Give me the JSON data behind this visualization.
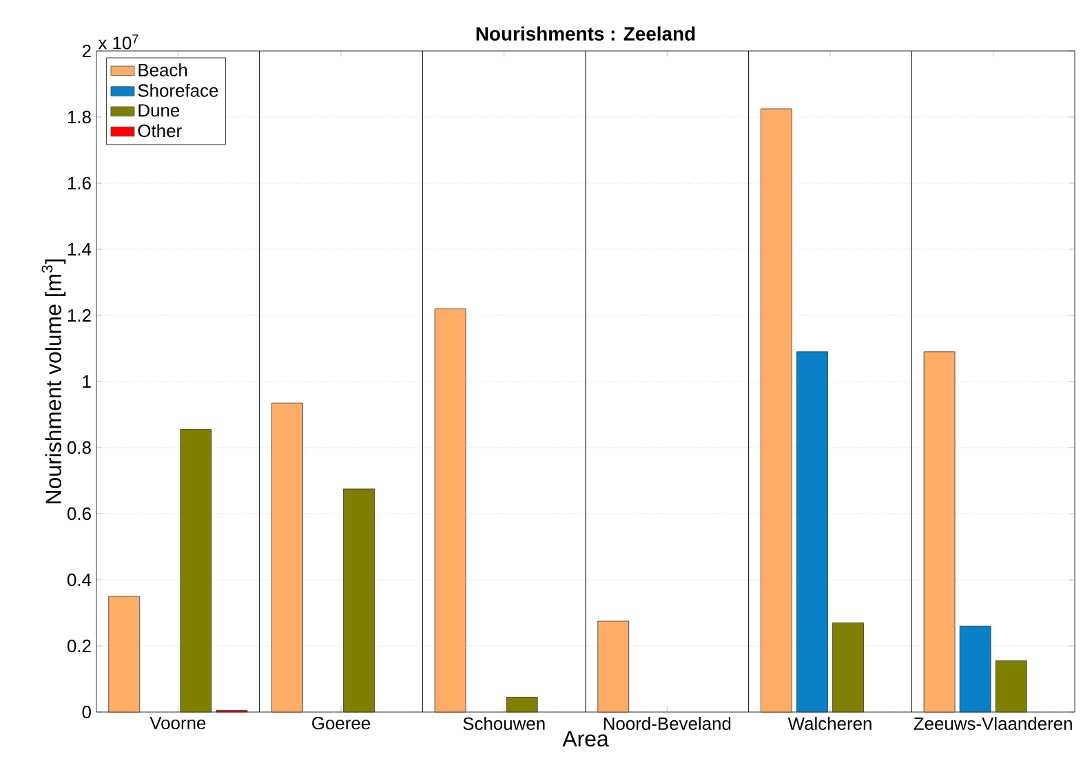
{
  "chart_data": {
    "type": "bar",
    "title": "Nourishments : Zeeland",
    "xlabel": "Area",
    "ylabel": "Nourishment volume [m$^{3}$]",
    "annotations": [
      "x 10$^{7}$"
    ],
    "categories": [
      "Voorne",
      "Goeree",
      "Schouwen",
      "Noord-Beveland",
      "Walcheren",
      "Zeeuws-Vlaanderen"
    ],
    "series": [
      {
        "name": "Beach",
        "color": "#ffad66",
        "values": [
          0.35,
          0.935,
          1.22,
          0.275,
          1.825,
          1.09
        ]
      },
      {
        "name": "Shoreface",
        "color": "#0a80c8",
        "values": [
          null,
          null,
          null,
          null,
          1.09,
          0.26
        ]
      },
      {
        "name": "Dune",
        "color": "#808000",
        "values": [
          0.855,
          0.675,
          0.045,
          null,
          0.27,
          0.155
        ]
      },
      {
        "name": "Other",
        "color": "#ff0000",
        "values": [
          0.005,
          null,
          null,
          null,
          null,
          null
        ]
      }
    ],
    "ylim": [
      0,
      2
    ],
    "yticks": [
      0,
      0.2,
      0.4,
      0.6,
      0.8,
      1,
      1.2,
      1.4,
      1.6,
      1.8,
      2
    ],
    "grid": "y",
    "legend": "top left"
  }
}
